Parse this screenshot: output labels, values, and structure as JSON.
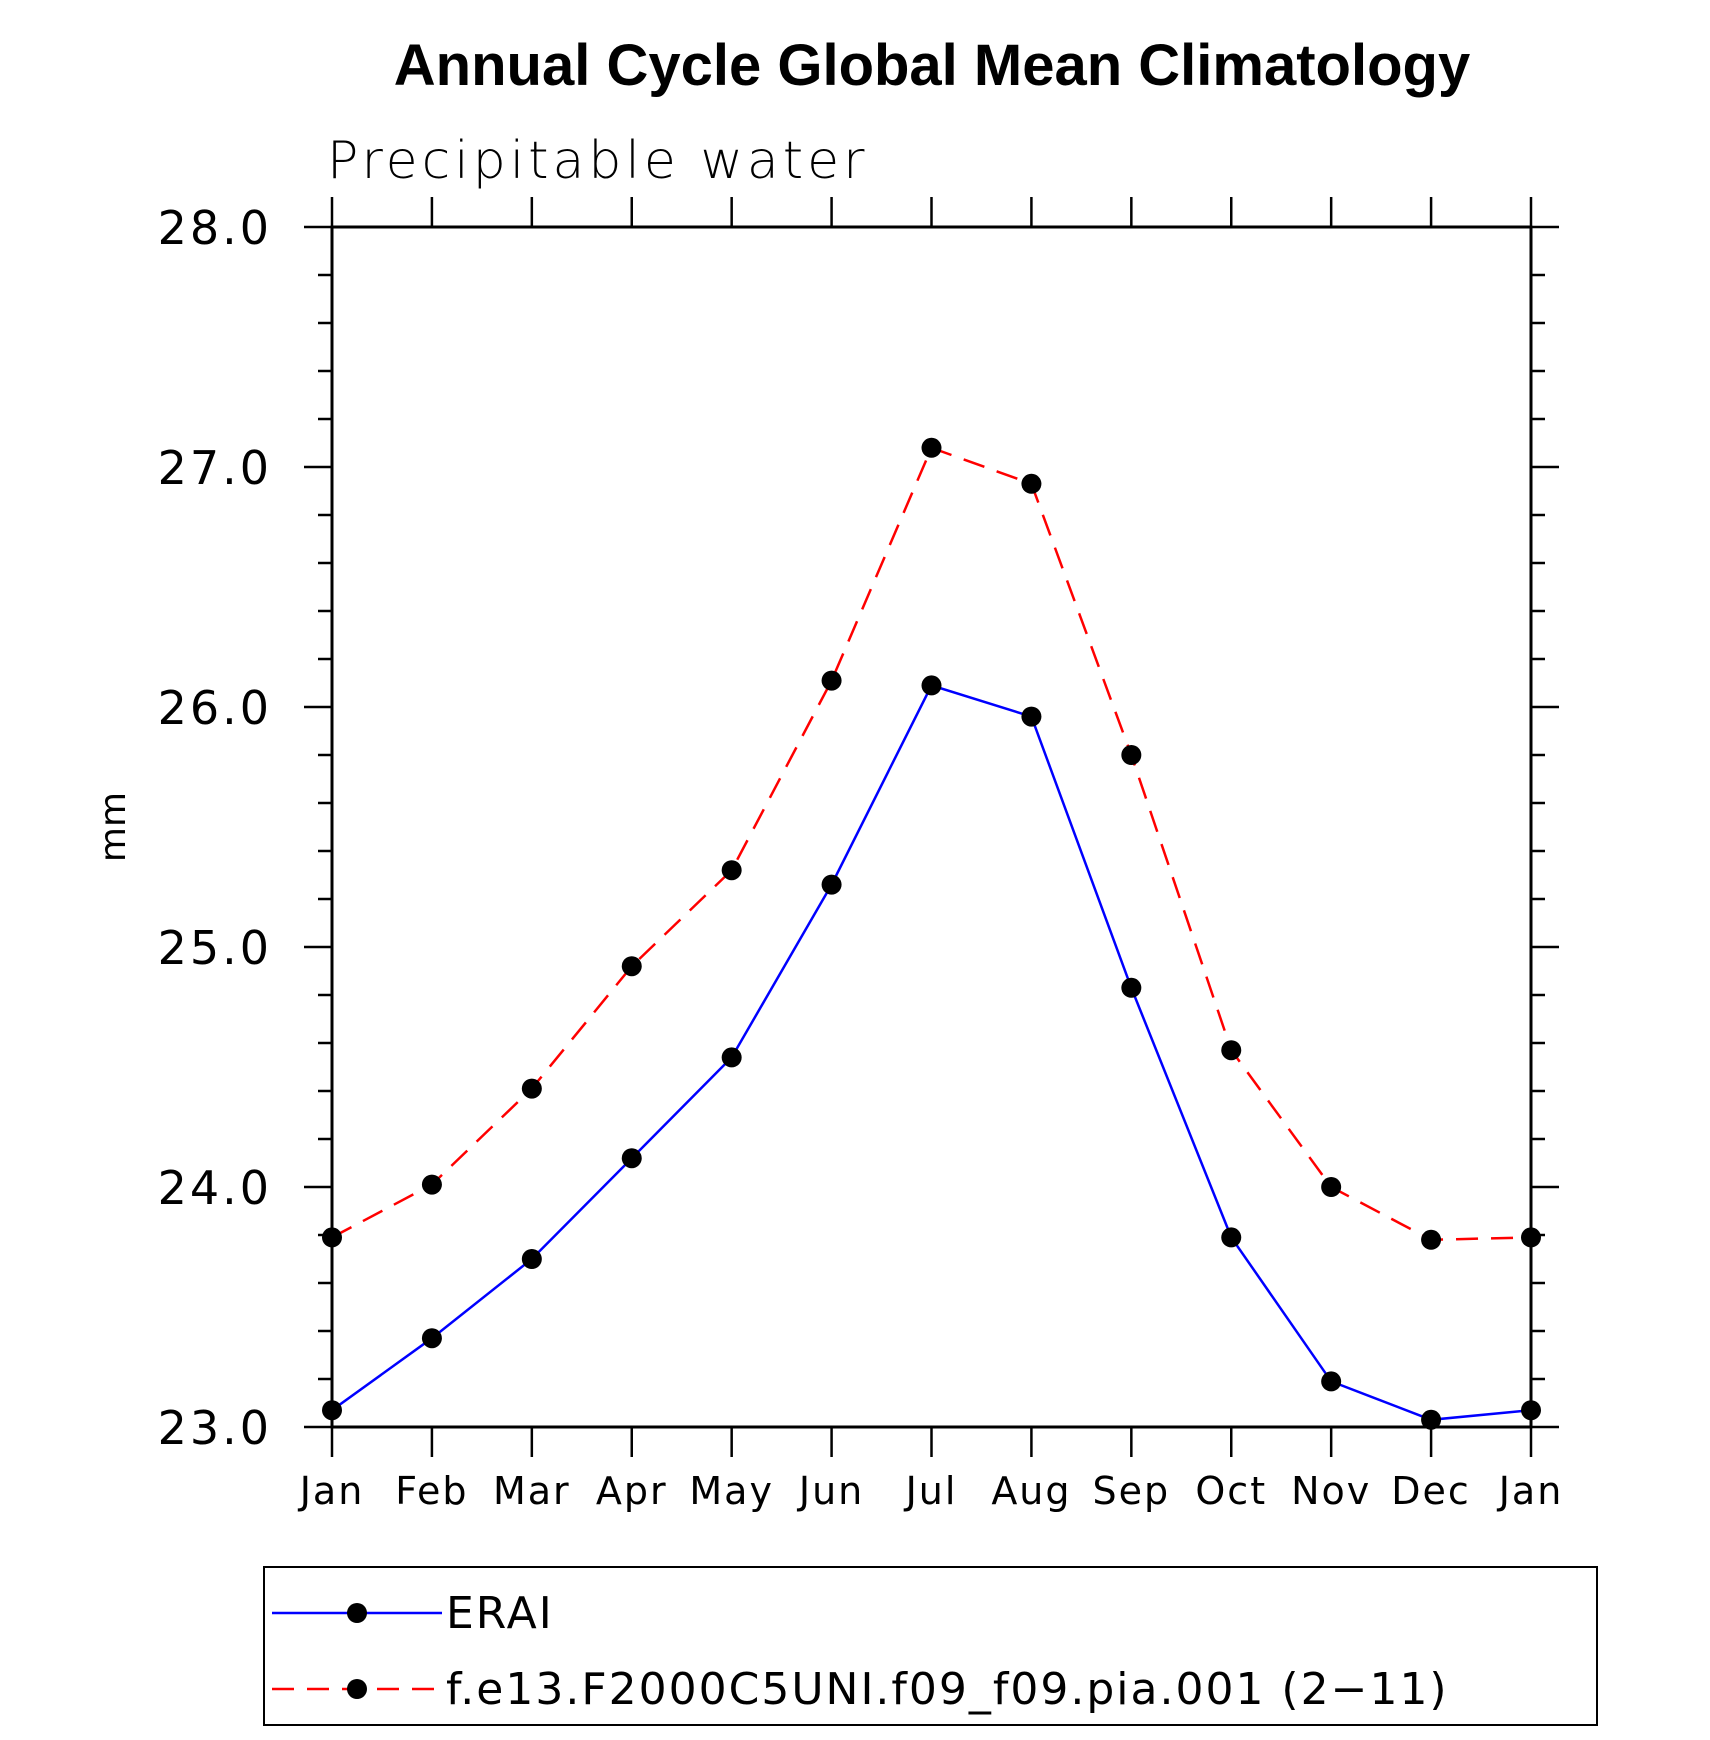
{
  "chart_data": {
    "type": "line",
    "title": "Annual Cycle Global Mean Climatology",
    "subtitle": "Precipitable water",
    "xlabel": "",
    "ylabel": "mm",
    "ylim": [
      23.0,
      28.0
    ],
    "yticks": [
      "23.0",
      "24.0",
      "25.0",
      "26.0",
      "27.0",
      "28.0"
    ],
    "categories": [
      "Jan",
      "Feb",
      "Mar",
      "Apr",
      "May",
      "Jun",
      "Jul",
      "Aug",
      "Sep",
      "Oct",
      "Nov",
      "Dec",
      "Jan"
    ],
    "grid": false,
    "legend_position": "bottom",
    "series": [
      {
        "name": "ERAI",
        "color": "#0000ff",
        "line_style": "solid",
        "marker": "filled-circle",
        "values": [
          23.07,
          23.37,
          23.7,
          24.12,
          24.54,
          25.26,
          26.09,
          25.96,
          24.83,
          23.79,
          23.19,
          23.03,
          23.07
        ]
      },
      {
        "name": "f.e13.F2000C5UNI.f09_f09.pia.001 (2−11)",
        "color": "#ff0000",
        "line_style": "dashed",
        "marker": "filled-circle",
        "values": [
          23.79,
          24.01,
          24.41,
          24.92,
          25.32,
          26.11,
          27.08,
          26.93,
          25.8,
          24.57,
          24.0,
          23.78,
          23.79
        ]
      }
    ]
  }
}
